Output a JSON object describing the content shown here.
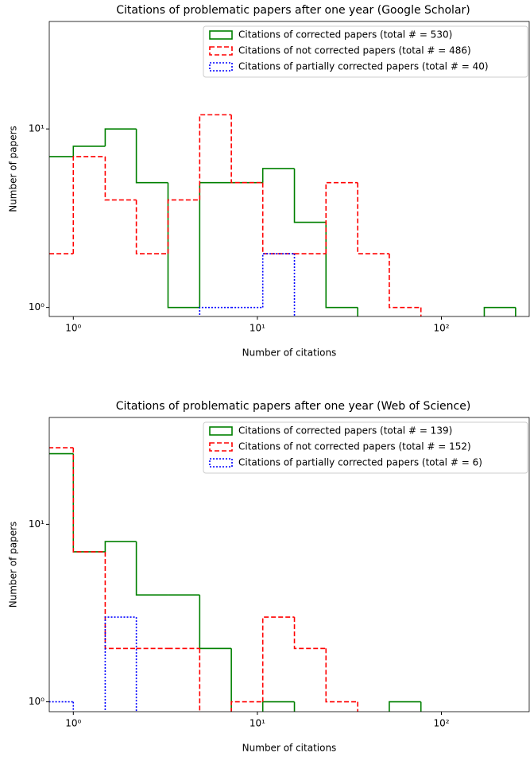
{
  "chart_data": [
    {
      "type": "histogram",
      "title": "Citations of problematic papers after one year (Google Scholar)",
      "xlabel": "Number of citations",
      "ylabel": "Number of papers",
      "xscale": "log",
      "yscale": "log",
      "legend": "upper right",
      "bins": [
        0.67,
        1,
        1.49,
        2.2,
        3.27,
        4.86,
        7.22,
        10.7,
        15.9,
        23.6,
        35.1,
        52.1,
        77.4,
        115,
        171,
        253
      ],
      "series": [
        {
          "name": "Citations of corrected papers (total # = 530)",
          "color": "#008000",
          "linestyle": "solid",
          "values": [
            7,
            8,
            10,
            5,
            1,
            5,
            5,
            6,
            3,
            1,
            0,
            0,
            0,
            0,
            1
          ]
        },
        {
          "name": "Citations of not corrected papers (total # = 486)",
          "color": "#ff0000",
          "linestyle": "dashed",
          "values": [
            2,
            7,
            4,
            2,
            4,
            12,
            5,
            2,
            2,
            5,
            2,
            1,
            0,
            0,
            0
          ]
        },
        {
          "name": "Citations of partially corrected papers (total # = 40)",
          "color": "#0000ff",
          "linestyle": "dotted",
          "values": [
            0,
            0,
            0,
            0,
            0,
            1,
            1,
            2,
            0,
            0,
            0,
            0,
            0,
            0,
            0
          ]
        }
      ],
      "xlim": [
        0.74,
        300
      ],
      "ylim": [
        0.89,
        40
      ],
      "xticks": [
        {
          "value": 1,
          "label": "10⁰"
        },
        {
          "value": 10,
          "label": "10¹"
        },
        {
          "value": 100,
          "label": "10²"
        }
      ],
      "yticks": [
        {
          "value": 1,
          "label": "10⁰"
        },
        {
          "value": 10,
          "label": "10¹"
        }
      ]
    },
    {
      "type": "histogram",
      "title": "Citations of problematic papers after one year (Web of Science)",
      "xlabel": "Number of citations",
      "ylabel": "Number of papers",
      "xscale": "log",
      "yscale": "log",
      "legend": "upper right",
      "bins": [
        0.67,
        1,
        1.49,
        2.2,
        3.27,
        4.86,
        7.22,
        10.7,
        15.9,
        23.6,
        35.1,
        52.1,
        77.4,
        115,
        171,
        253
      ],
      "series": [
        {
          "name": "Citations of corrected papers (total # = 139)",
          "color": "#008000",
          "linestyle": "solid",
          "values": [
            25,
            7,
            8,
            4,
            4,
            2,
            0,
            1,
            0,
            0,
            0,
            1,
            0,
            0,
            0
          ]
        },
        {
          "name": "Citations of not corrected papers (total # = 152)",
          "color": "#ff0000",
          "linestyle": "dashed",
          "values": [
            27,
            7,
            2,
            2,
            2,
            0,
            1,
            3,
            2,
            1,
            0,
            0,
            0,
            0,
            0
          ]
        },
        {
          "name": "Citations of partially corrected papers (total # = 6)",
          "color": "#0000ff",
          "linestyle": "dotted",
          "values": [
            1,
            0,
            3,
            0,
            0,
            0,
            0,
            0,
            0,
            0,
            0,
            0,
            0,
            0,
            0
          ]
        }
      ],
      "xlim": [
        0.74,
        300
      ],
      "ylim": [
        0.88,
        40
      ],
      "xticks": [
        {
          "value": 1,
          "label": "10⁰"
        },
        {
          "value": 10,
          "label": "10¹"
        },
        {
          "value": 100,
          "label": "10²"
        }
      ],
      "yticks": [
        {
          "value": 1,
          "label": "10⁰"
        },
        {
          "value": 10,
          "label": "10¹"
        }
      ]
    }
  ]
}
